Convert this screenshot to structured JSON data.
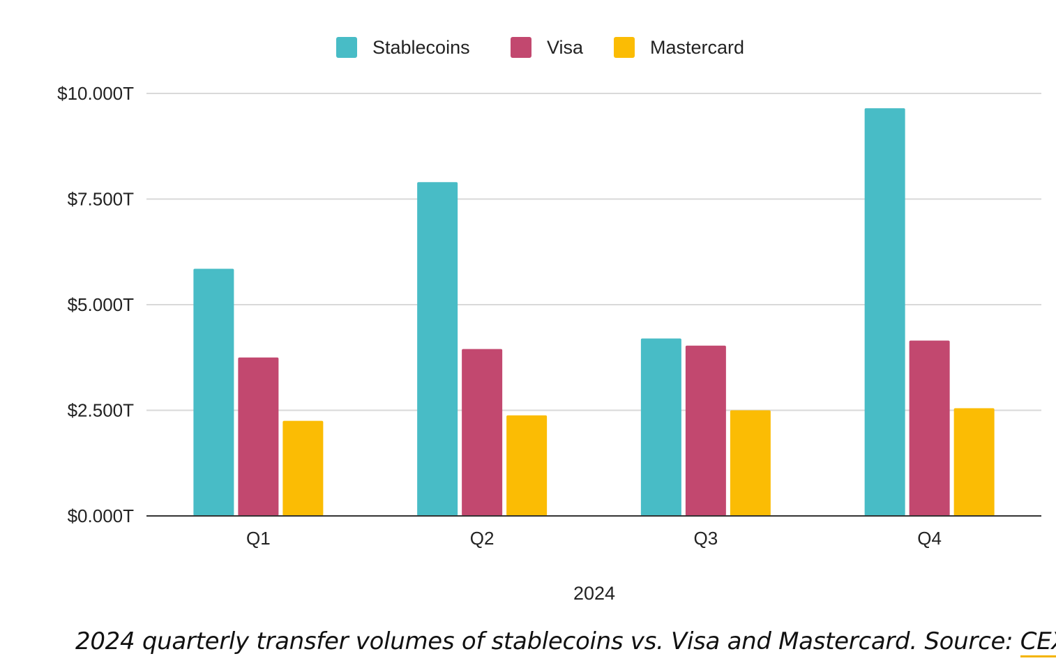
{
  "chart_data": {
    "type": "bar",
    "categories": [
      "Q1",
      "Q2",
      "Q3",
      "Q4"
    ],
    "series": [
      {
        "name": "Stablecoins",
        "color": "#48BCC6",
        "values": [
          5.85,
          7.9,
          4.2,
          9.65
        ]
      },
      {
        "name": "Visa",
        "color": "#C2486F",
        "values": [
          3.75,
          3.95,
          4.03,
          4.15
        ]
      },
      {
        "name": "Mastercard",
        "color": "#FBBC04",
        "values": [
          2.25,
          2.38,
          2.5,
          2.55
        ]
      }
    ],
    "ylim": [
      0,
      10
    ],
    "yticks": [
      0,
      2.5,
      5,
      7.5,
      10
    ],
    "ytick_labels": [
      "$0.000T",
      "$2.500T",
      "$5.000T",
      "$7.500T",
      "$10.000T"
    ],
    "xlabel": "2024",
    "ylabel": "",
    "grid": true,
    "legend_position": "top-center"
  },
  "caption": {
    "text": "2024 quarterly transfer volumes of stablecoins vs. Visa and Mastercard. Source: ",
    "link_text": "CEX.io",
    "link_color": "#F4B400"
  }
}
